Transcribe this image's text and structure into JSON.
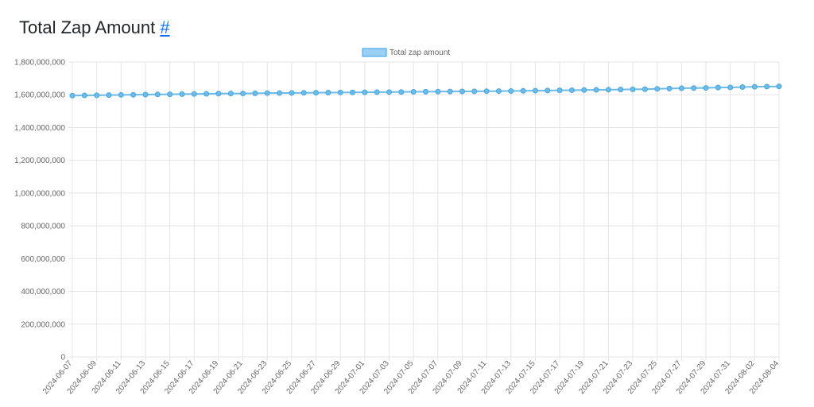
{
  "page": {
    "title": "Total Zap Amount",
    "anchor": "#"
  },
  "chart_data": {
    "type": "line",
    "legend": {
      "label": "Total zap amount",
      "placement": "top-center"
    },
    "colors": {
      "line": "#6cbbe8",
      "point": "#6cbbe8",
      "point_border": "#4aa6dd",
      "legend_fill": "#9ad0f5",
      "legend_border": "#36a2eb",
      "grid": "#e5e5e5"
    },
    "ylim": [
      0,
      1800000000
    ],
    "y_ticks": [
      0,
      200000000,
      400000000,
      600000000,
      800000000,
      1000000000,
      1200000000,
      1400000000,
      1600000000,
      1800000000
    ],
    "y_tick_labels": [
      "0",
      "200,000,000",
      "400,000,000",
      "600,000,000",
      "800,000,000",
      "1,000,000,000",
      "1,200,000,000",
      "1,400,000,000",
      "1,600,000,000",
      "1,800,000,000"
    ],
    "x_tick_labels": [
      "2024-06-07",
      "2024-06-09",
      "2024-06-11",
      "2024-06-13",
      "2024-06-15",
      "2024-06-17",
      "2024-06-19",
      "2024-06-21",
      "2024-06-23",
      "2024-06-25",
      "2024-06-27",
      "2024-06-29",
      "2024-07-01",
      "2024-07-03",
      "2024-07-05",
      "2024-07-07",
      "2024-07-09",
      "2024-07-11",
      "2024-07-13",
      "2024-07-15",
      "2024-07-17",
      "2024-07-19",
      "2024-07-21",
      "2024-07-23",
      "2024-07-25",
      "2024-07-27",
      "2024-07-29",
      "2024-07-31",
      "2024-08-02",
      "2024-08-04"
    ],
    "x": [
      "2024-06-07",
      "2024-06-08",
      "2024-06-09",
      "2024-06-10",
      "2024-06-11",
      "2024-06-12",
      "2024-06-13",
      "2024-06-14",
      "2024-06-15",
      "2024-06-16",
      "2024-06-17",
      "2024-06-18",
      "2024-06-19",
      "2024-06-20",
      "2024-06-21",
      "2024-06-22",
      "2024-06-23",
      "2024-06-24",
      "2024-06-25",
      "2024-06-26",
      "2024-06-27",
      "2024-06-28",
      "2024-06-29",
      "2024-06-30",
      "2024-07-01",
      "2024-07-02",
      "2024-07-03",
      "2024-07-04",
      "2024-07-05",
      "2024-07-06",
      "2024-07-07",
      "2024-07-08",
      "2024-07-09",
      "2024-07-10",
      "2024-07-11",
      "2024-07-12",
      "2024-07-13",
      "2024-07-14",
      "2024-07-15",
      "2024-07-16",
      "2024-07-17",
      "2024-07-18",
      "2024-07-19",
      "2024-07-20",
      "2024-07-21",
      "2024-07-22",
      "2024-07-23",
      "2024-07-24",
      "2024-07-25",
      "2024-07-26",
      "2024-07-27",
      "2024-07-28",
      "2024-07-29",
      "2024-07-30",
      "2024-07-31",
      "2024-08-01",
      "2024-08-02",
      "2024-08-03",
      "2024-08-04"
    ],
    "series": [
      {
        "name": "Total zap amount",
        "values": [
          1595000000,
          1596000000,
          1597000000,
          1598000000,
          1599000000,
          1600000000,
          1601000000,
          1602000000,
          1603000000,
          1604000000,
          1605000000,
          1606000000,
          1607000000,
          1607500000,
          1608000000,
          1609000000,
          1610000000,
          1610500000,
          1611000000,
          1612000000,
          1612500000,
          1613000000,
          1614000000,
          1614500000,
          1615000000,
          1616000000,
          1616500000,
          1617000000,
          1618000000,
          1618500000,
          1619000000,
          1620000000,
          1620500000,
          1621000000,
          1622000000,
          1622500000,
          1623000000,
          1624000000,
          1625000000,
          1626000000,
          1627000000,
          1628000000,
          1629000000,
          1630000000,
          1631000000,
          1632000000,
          1633000000,
          1634000000,
          1636000000,
          1638000000,
          1640000000,
          1641000000,
          1642000000,
          1644000000,
          1645000000,
          1647000000,
          1649000000,
          1650000000,
          1651000000
        ]
      }
    ]
  }
}
